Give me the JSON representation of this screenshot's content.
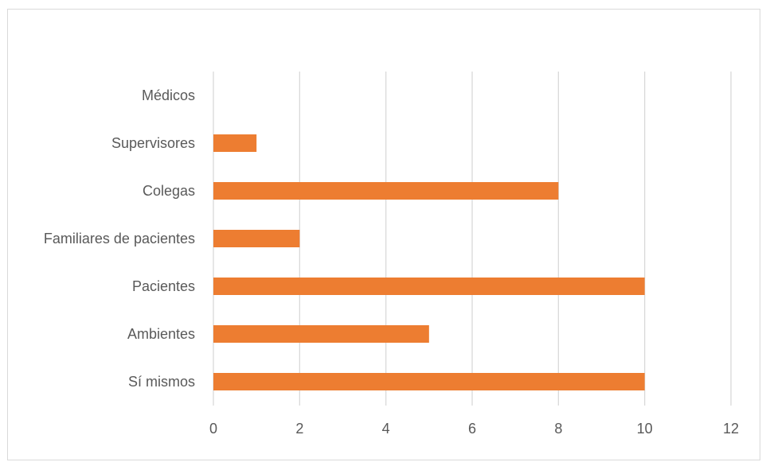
{
  "chart_data": {
    "type": "bar",
    "orientation": "horizontal",
    "categories": [
      "Médicos",
      "Supervisores",
      "Colegas",
      "Familiares de pacientes",
      "Pacientes",
      "Ambientes",
      "Sí mismos"
    ],
    "values": [
      0,
      1,
      8,
      2,
      10,
      5,
      10
    ],
    "x_ticks": [
      "0",
      "2",
      "4",
      "6",
      "8",
      "10",
      "12"
    ],
    "xlim": [
      0,
      12
    ],
    "grid": true,
    "legend": "none",
    "bar_color": "#ED7D31",
    "grid_color": "#D9D9D9"
  }
}
